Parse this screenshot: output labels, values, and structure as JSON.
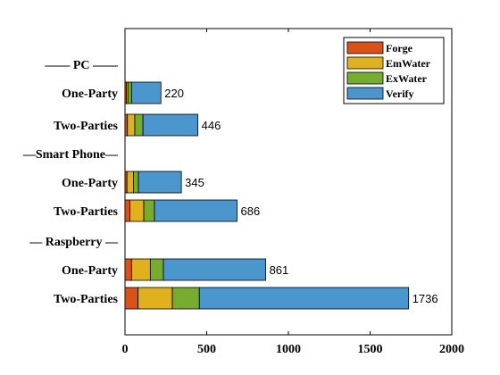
{
  "chart_data": {
    "type": "bar",
    "orientation": "horizontal",
    "stacked": true,
    "xlim": [
      0,
      2000
    ],
    "x_ticks": [
      0,
      500,
      1000,
      1500,
      2000
    ],
    "x_tick_labels": [
      "0",
      "500",
      "1000",
      "1500",
      "2000"
    ],
    "legend_position": "top-right",
    "grid": false,
    "rows": [
      {
        "label": "——   PC   ——",
        "kind": "header"
      },
      {
        "label": "One-Party",
        "kind": "bar",
        "total": "220",
        "values": [
          8,
          10,
          22,
          180
        ]
      },
      {
        "label": "Two-Parties",
        "kind": "bar",
        "total": "446",
        "values": [
          15,
          45,
          50,
          336
        ]
      },
      {
        "label": "—Smart Phone—",
        "kind": "header"
      },
      {
        "label": "One-Party",
        "kind": "bar",
        "total": "345",
        "values": [
          12,
          40,
          30,
          263
        ]
      },
      {
        "label": "Two-Parties",
        "kind": "bar",
        "total": "686",
        "values": [
          30,
          85,
          65,
          506
        ]
      },
      {
        "label": "—  Raspberry  —",
        "kind": "header"
      },
      {
        "label": "One-Party",
        "kind": "bar",
        "total": "861",
        "values": [
          40,
          115,
          80,
          626
        ]
      },
      {
        "label": "Two-Parties",
        "kind": "bar",
        "total": "1736",
        "values": [
          80,
          210,
          165,
          1281
        ]
      }
    ],
    "series": [
      {
        "name": "Forge",
        "color": "#d95319"
      },
      {
        "name": "EmWater",
        "color": "#e0b11f"
      },
      {
        "name": "ExWater",
        "color": "#77ac30"
      },
      {
        "name": "Verify",
        "color": "#4b96cc"
      }
    ]
  }
}
